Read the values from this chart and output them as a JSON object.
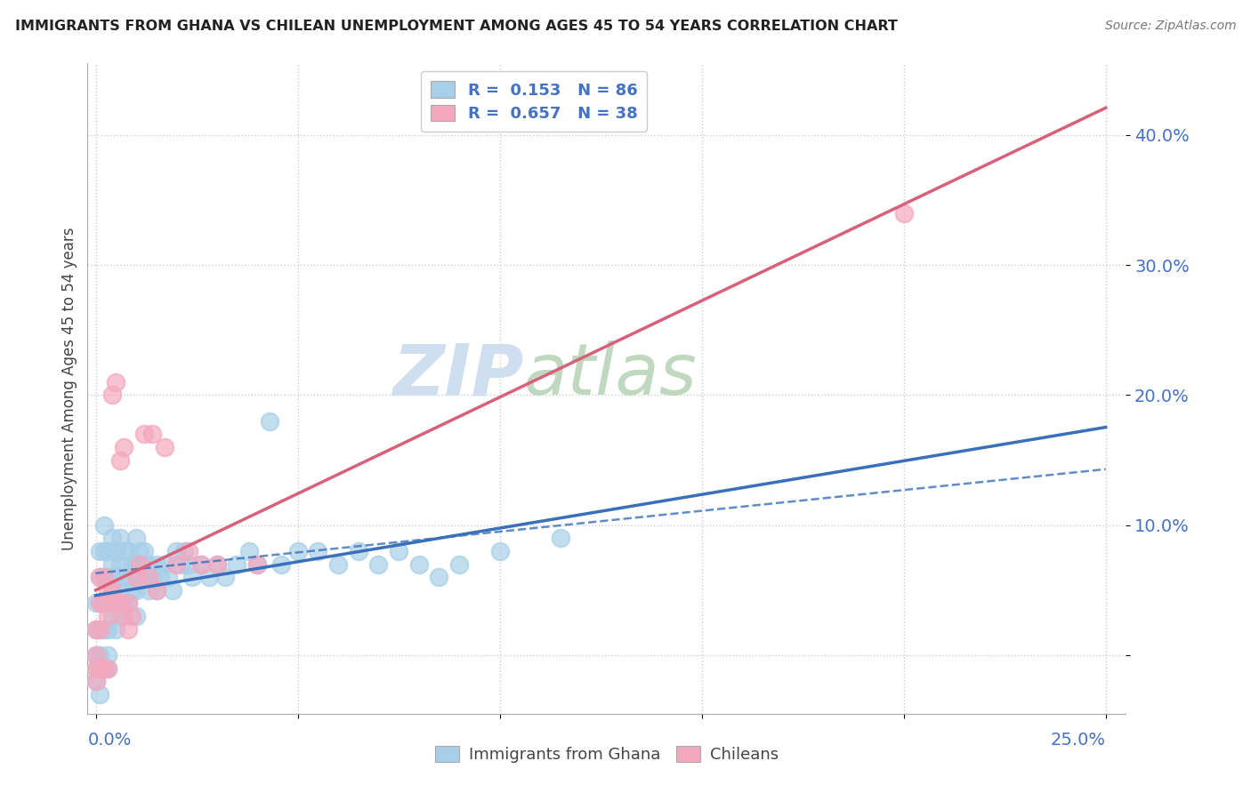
{
  "title": "IMMIGRANTS FROM GHANA VS CHILEAN UNEMPLOYMENT AMONG AGES 45 TO 54 YEARS CORRELATION CHART",
  "source": "Source: ZipAtlas.com",
  "ylabel": "Unemployment Among Ages 45 to 54 years",
  "legend_ghana": "Immigrants from Ghana",
  "legend_chileans": "Chileans",
  "r_ghana": "0.153",
  "n_ghana": "86",
  "r_chileans": "0.657",
  "n_chileans": "38",
  "yticks": [
    0.0,
    0.1,
    0.2,
    0.3,
    0.4
  ],
  "ytick_labels": [
    "",
    "10.0%",
    "20.0%",
    "30.0%",
    "40.0%"
  ],
  "xlim": [
    -0.002,
    0.255
  ],
  "ylim": [
    -0.045,
    0.455
  ],
  "color_ghana": "#a8cfe8",
  "color_chileans": "#f4a8be",
  "color_ghana_line": "#3a6fba",
  "color_chileans_line": "#d9607a",
  "watermark_zip": "ZIP",
  "watermark_atlas": "atlas",
  "ghana_x": [
    0.0,
    0.0,
    0.0,
    0.0,
    0.0,
    0.001,
    0.001,
    0.001,
    0.001,
    0.001,
    0.001,
    0.001,
    0.002,
    0.002,
    0.002,
    0.002,
    0.002,
    0.002,
    0.003,
    0.003,
    0.003,
    0.003,
    0.003,
    0.003,
    0.004,
    0.004,
    0.004,
    0.004,
    0.005,
    0.005,
    0.005,
    0.005,
    0.006,
    0.006,
    0.006,
    0.006,
    0.007,
    0.007,
    0.007,
    0.008,
    0.008,
    0.008,
    0.009,
    0.009,
    0.01,
    0.01,
    0.01,
    0.01,
    0.011,
    0.011,
    0.012,
    0.012,
    0.013,
    0.013,
    0.014,
    0.015,
    0.015,
    0.016,
    0.017,
    0.018,
    0.019,
    0.02,
    0.021,
    0.022,
    0.023,
    0.024,
    0.026,
    0.028,
    0.03,
    0.032,
    0.035,
    0.038,
    0.04,
    0.043,
    0.046,
    0.05,
    0.055,
    0.06,
    0.065,
    0.07,
    0.075,
    0.08,
    0.085,
    0.09,
    0.1,
    0.115
  ],
  "ghana_y": [
    0.04,
    0.02,
    0.0,
    -0.01,
    -0.02,
    0.08,
    0.06,
    0.04,
    0.02,
    0.0,
    -0.01,
    -0.03,
    0.1,
    0.08,
    0.06,
    0.04,
    0.02,
    -0.01,
    0.08,
    0.06,
    0.04,
    0.02,
    0.0,
    -0.01,
    0.09,
    0.07,
    0.05,
    0.03,
    0.08,
    0.06,
    0.04,
    0.02,
    0.09,
    0.07,
    0.05,
    0.03,
    0.08,
    0.06,
    0.04,
    0.08,
    0.06,
    0.04,
    0.07,
    0.05,
    0.09,
    0.07,
    0.05,
    0.03,
    0.08,
    0.06,
    0.08,
    0.06,
    0.07,
    0.05,
    0.06,
    0.07,
    0.05,
    0.06,
    0.07,
    0.06,
    0.05,
    0.08,
    0.07,
    0.08,
    0.07,
    0.06,
    0.07,
    0.06,
    0.07,
    0.06,
    0.07,
    0.08,
    0.07,
    0.18,
    0.07,
    0.08,
    0.08,
    0.07,
    0.08,
    0.07,
    0.08,
    0.07,
    0.06,
    0.07,
    0.08,
    0.09
  ],
  "chilean_x": [
    0.0,
    0.0,
    0.0,
    0.0,
    0.001,
    0.001,
    0.001,
    0.001,
    0.002,
    0.002,
    0.002,
    0.003,
    0.003,
    0.003,
    0.004,
    0.004,
    0.005,
    0.005,
    0.006,
    0.006,
    0.007,
    0.007,
    0.008,
    0.008,
    0.009,
    0.01,
    0.011,
    0.012,
    0.013,
    0.014,
    0.015,
    0.017,
    0.02,
    0.023,
    0.026,
    0.03,
    0.04,
    0.2
  ],
  "chilean_y": [
    0.02,
    0.0,
    -0.01,
    -0.02,
    0.06,
    0.04,
    0.02,
    -0.01,
    0.06,
    0.04,
    -0.01,
    0.05,
    0.03,
    -0.01,
    0.05,
    0.2,
    0.04,
    0.21,
    0.04,
    0.15,
    0.03,
    0.16,
    0.04,
    0.02,
    0.03,
    0.06,
    0.07,
    0.17,
    0.06,
    0.17,
    0.05,
    0.16,
    0.07,
    0.08,
    0.07,
    0.07,
    0.07,
    0.34
  ]
}
